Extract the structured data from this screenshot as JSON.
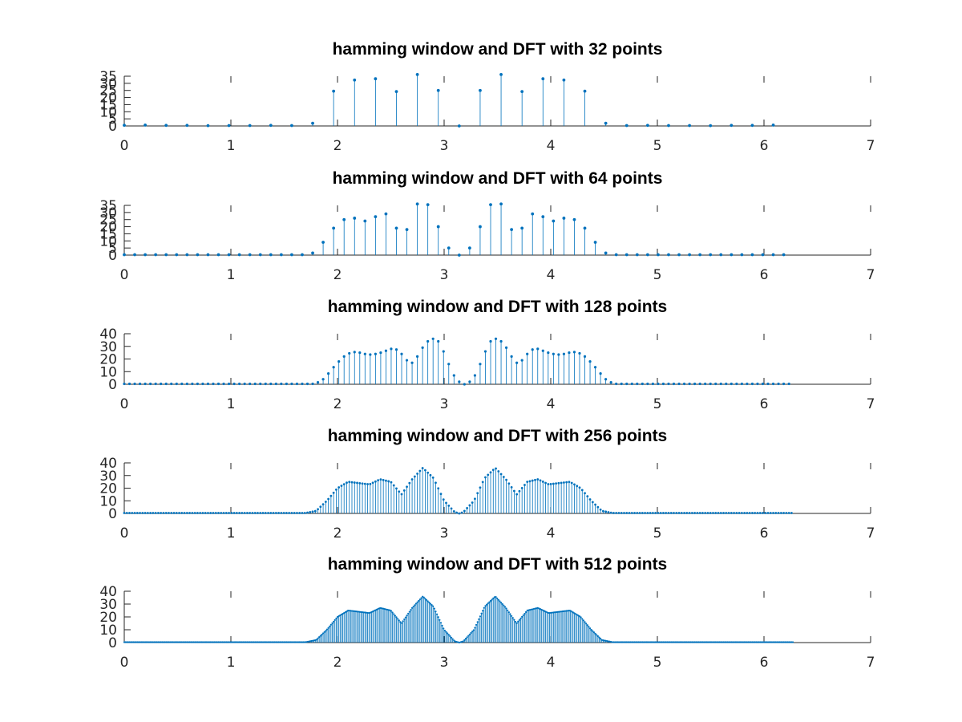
{
  "figure": {
    "background": "#ffffff"
  },
  "colors": {
    "series": "#0072bd",
    "axis": "#262626",
    "title": "#000000"
  },
  "chart_data": [
    {
      "type": "stem",
      "title": "hamming window and DFT with 32 points",
      "n_points": 32,
      "xlim": [
        0,
        7
      ],
      "ylim": [
        0,
        35
      ],
      "xticks": [
        "0",
        "1",
        "2",
        "3",
        "4",
        "5",
        "6",
        "7"
      ],
      "yticks": [
        "0",
        "5",
        "10",
        "15",
        "20",
        "25",
        "30",
        "35"
      ],
      "x_start": 0,
      "x_step": 0.19635,
      "values": [
        0.5,
        0.6,
        0.4,
        0.4,
        0.2,
        0.3,
        0.3,
        0.4,
        0.3,
        1.9,
        24.5,
        32.3,
        33.2,
        24.2,
        36.2,
        25.0,
        0,
        25.0,
        36.2,
        24.2,
        33.2,
        32.3,
        24.5,
        1.9,
        0.3,
        0.4,
        0.3,
        0.3,
        0.2,
        0.4,
        0.4,
        0.6
      ]
    },
    {
      "type": "stem",
      "title": "hamming window and DFT with 64 points",
      "n_points": 64,
      "xlim": [
        0,
        7
      ],
      "ylim": [
        0,
        35
      ],
      "xticks": [
        "0",
        "1",
        "2",
        "3",
        "4",
        "5",
        "6",
        "7"
      ],
      "yticks": [
        "0",
        "5",
        "10",
        "15",
        "20",
        "25",
        "30",
        "35"
      ],
      "x_start": 0,
      "x_step": 0.098175,
      "values": [
        0.3,
        0.3,
        0.3,
        0.3,
        0.3,
        0.3,
        0.3,
        0.3,
        0.3,
        0.3,
        0.3,
        0.3,
        0.3,
        0.3,
        0.3,
        0.3,
        0.3,
        0.3,
        1.5,
        9.0,
        19.0,
        25.0,
        26.0,
        24.0,
        27.0,
        29.0,
        19.0,
        18.0,
        36.0,
        35.5,
        20.0,
        5.0,
        0,
        5.0,
        20.0,
        35.5,
        36.0,
        18.0,
        19.0,
        29.0,
        27.0,
        24.0,
        26.0,
        25.0,
        19.0,
        9.0,
        1.5,
        0.3,
        0.3,
        0.3,
        0.3,
        0.3,
        0.3,
        0.3,
        0.3,
        0.3,
        0.3,
        0.3,
        0.3,
        0.3,
        0.3,
        0.3,
        0.3,
        0.3
      ]
    },
    {
      "type": "stem",
      "title": "hamming window and DFT with 128 points",
      "n_points": 128,
      "xlim": [
        0,
        7
      ],
      "ylim": [
        0,
        40
      ],
      "xticks": [
        "0",
        "1",
        "2",
        "3",
        "4",
        "5",
        "6",
        "7"
      ],
      "yticks": [
        "0",
        "10",
        "20",
        "30",
        "40"
      ],
      "x_start": 0,
      "x_step": 0.049087,
      "values": [
        0.3,
        0.3,
        0.3,
        0.3,
        0.3,
        0.3,
        0.3,
        0.3,
        0.3,
        0.3,
        0.3,
        0.3,
        0.3,
        0.3,
        0.3,
        0.3,
        0.3,
        0.3,
        0.3,
        0.3,
        0.3,
        0.3,
        0.3,
        0.3,
        0.3,
        0.3,
        0.3,
        0.3,
        0.3,
        0.3,
        0.3,
        0.3,
        0.3,
        0.3,
        0.3,
        0.3,
        0.3,
        1.5,
        4.0,
        8.5,
        13.5,
        18.0,
        22.0,
        24.5,
        25.5,
        25.0,
        24.0,
        23.5,
        24.0,
        25.0,
        26.5,
        28.0,
        27.5,
        24.0,
        19.0,
        17.0,
        22.0,
        29.0,
        34.0,
        36.0,
        34.0,
        26.0,
        16.0,
        7.0,
        2.0,
        0,
        2.0,
        7.0,
        16.0,
        26.0,
        34.0,
        36.0,
        34.0,
        29.0,
        22.0,
        17.0,
        19.0,
        24.0,
        27.5,
        28.0,
        26.5,
        25.0,
        24.0,
        23.5,
        24.0,
        25.0,
        25.5,
        24.5,
        22.0,
        18.0,
        13.5,
        8.5,
        4.0,
        1.5,
        0.3,
        0.3,
        0.3,
        0.3,
        0.3,
        0.3,
        0.3,
        0.3,
        0.3,
        0.3,
        0.3,
        0.3,
        0.3,
        0.3,
        0.3,
        0.3,
        0.3,
        0.3,
        0.3,
        0.3,
        0.3,
        0.3,
        0.3,
        0.3,
        0.3,
        0.3,
        0.3,
        0.3,
        0.3,
        0.3,
        0.3,
        0.3,
        0.3,
        0.3
      ]
    },
    {
      "type": "stem",
      "title": "hamming window and DFT with 256 points",
      "n_points": 256,
      "xlim": [
        0,
        7
      ],
      "ylim": [
        0,
        40
      ],
      "xticks": [
        "0",
        "1",
        "2",
        "3",
        "4",
        "5",
        "6",
        "7"
      ],
      "yticks": [
        "0",
        "10",
        "20",
        "30",
        "40"
      ],
      "x_start": 0,
      "x_step": 0.024544,
      "envelope": {
        "x": [
          0,
          1.7,
          1.8,
          1.9,
          2.0,
          2.1,
          2.2,
          2.3,
          2.4,
          2.5,
          2.6,
          2.7,
          2.8,
          2.9,
          3.0,
          3.1,
          3.1416,
          3.18,
          3.28,
          3.38,
          3.48,
          3.58,
          3.68,
          3.78,
          3.88,
          3.98,
          4.08,
          4.18,
          4.28,
          4.38,
          4.48,
          4.58,
          6.2832
        ],
        "y": [
          0.3,
          0.3,
          2.0,
          10.0,
          20.0,
          25.0,
          24.0,
          23.0,
          27.0,
          25.0,
          15.0,
          27.0,
          36.0,
          28.0,
          10.0,
          1.0,
          0,
          1.0,
          10.0,
          28.0,
          36.0,
          27.0,
          15.0,
          25.0,
          27.0,
          23.0,
          24.0,
          25.0,
          20.0,
          10.0,
          2.0,
          0.3,
          0.3
        ]
      }
    },
    {
      "type": "stem",
      "title": "hamming window and DFT with 512 points",
      "n_points": 512,
      "xlim": [
        0,
        7
      ],
      "ylim": [
        0,
        40
      ],
      "xticks": [
        "0",
        "1",
        "2",
        "3",
        "4",
        "5",
        "6",
        "7"
      ],
      "yticks": [
        "0",
        "10",
        "20",
        "30",
        "40"
      ],
      "x_start": 0,
      "x_step": 0.012272,
      "envelope": {
        "x": [
          0,
          1.7,
          1.8,
          1.9,
          2.0,
          2.1,
          2.2,
          2.3,
          2.4,
          2.5,
          2.6,
          2.7,
          2.8,
          2.9,
          3.0,
          3.1,
          3.1416,
          3.18,
          3.28,
          3.38,
          3.48,
          3.58,
          3.68,
          3.78,
          3.88,
          3.98,
          4.08,
          4.18,
          4.28,
          4.38,
          4.48,
          4.58,
          6.2832
        ],
        "y": [
          0.3,
          0.3,
          2.0,
          10.0,
          20.0,
          25.0,
          24.0,
          23.0,
          27.0,
          25.0,
          15.0,
          27.0,
          36.0,
          28.0,
          10.0,
          1.0,
          0,
          1.0,
          10.0,
          28.0,
          36.0,
          27.0,
          15.0,
          25.0,
          27.0,
          23.0,
          24.0,
          25.0,
          20.0,
          10.0,
          2.0,
          0.3,
          0.3
        ]
      }
    }
  ]
}
